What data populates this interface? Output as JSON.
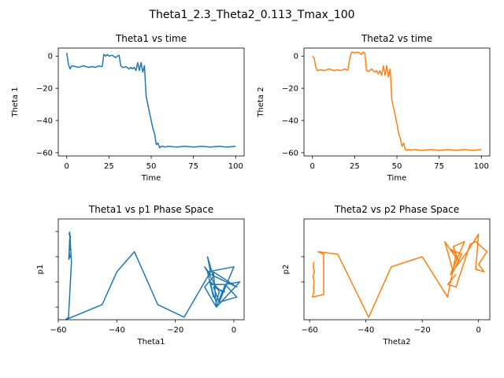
{
  "figure": {
    "suptitle": "Theta1_2.3_Theta2_0.113_Tmax_100"
  },
  "chart_data": [
    {
      "type": "line",
      "title": "Theta1 vs time",
      "xlabel": "Time",
      "ylabel": "Theta 1",
      "xlim": [
        -5,
        105
      ],
      "ylim": [
        -62,
        5
      ],
      "xticks": [
        0,
        25,
        50,
        75,
        100
      ],
      "xtick_labels": [
        "0",
        "25",
        "50",
        "75",
        "100"
      ],
      "yticks": [
        0,
        -20,
        -40,
        -60
      ],
      "ytick_labels": [
        "0",
        "−20",
        "−40",
        "−60"
      ],
      "color": "#1f77b4",
      "series": [
        {
          "x": [
            0,
            1,
            2,
            3,
            5,
            7,
            10,
            13,
            15,
            17,
            19,
            20,
            21,
            22,
            23,
            24,
            25,
            27,
            29,
            30,
            31,
            32,
            33,
            34,
            35,
            37,
            38,
            39,
            40,
            41,
            42,
            43,
            44,
            45,
            46,
            47,
            48,
            49,
            50,
            51,
            52,
            53,
            54,
            55,
            56,
            57,
            58,
            60,
            65,
            70,
            75,
            80,
            85,
            90,
            95,
            100
          ],
          "y": [
            2,
            -5,
            -8,
            -6,
            -6.5,
            -7,
            -6,
            -7,
            -6.5,
            -7,
            -6,
            -6.5,
            -6.5,
            1,
            0,
            1,
            0,
            0.5,
            -1,
            0,
            0.5,
            -6,
            -7,
            -7,
            -6.5,
            -8,
            -7,
            -8,
            -7,
            -9,
            -4,
            -9,
            -4,
            -10,
            -6,
            -25,
            -30,
            -35,
            -40,
            -45,
            -48,
            -55,
            -54,
            -57,
            -56,
            -56,
            -56.5,
            -56,
            -56.5,
            -56,
            -56.5,
            -56,
            -56.5,
            -56,
            -56.5,
            -56
          ]
        }
      ]
    },
    {
      "type": "line",
      "title": "Theta2 vs time",
      "xlabel": "Time",
      "ylabel": "Theta 2",
      "xlim": [
        -5,
        105
      ],
      "ylim": [
        -62,
        5
      ],
      "xticks": [
        0,
        25,
        50,
        75,
        100
      ],
      "xtick_labels": [
        "0",
        "25",
        "50",
        "75",
        "100"
      ],
      "yticks": [
        0,
        -20,
        -40,
        -60
      ],
      "ytick_labels": [
        "0",
        "−20",
        "−40",
        "−60"
      ],
      "color": "#ff7f0e",
      "series": [
        {
          "x": [
            0,
            1,
            2,
            3,
            5,
            7,
            10,
            13,
            15,
            17,
            19,
            20,
            21,
            22,
            23,
            24,
            25,
            27,
            29,
            30,
            31,
            32,
            33,
            34,
            35,
            37,
            38,
            39,
            40,
            41,
            42,
            43,
            44,
            45,
            46,
            47,
            48,
            49,
            50,
            51,
            52,
            53,
            54,
            55,
            56,
            57,
            58,
            60,
            65,
            70,
            75,
            80,
            85,
            90,
            95,
            100
          ],
          "y": [
            0,
            -1,
            -7,
            -9,
            -8.5,
            -9,
            -8,
            -9,
            -8.5,
            -9,
            -8,
            -8.5,
            -8.5,
            -2,
            2,
            2.5,
            2,
            2.5,
            1,
            2.5,
            2,
            -9,
            -9.5,
            -9,
            -8,
            -10,
            -9,
            -11,
            -9,
            -12,
            -6,
            -12,
            -6,
            -13,
            -8,
            -27,
            -32,
            -37,
            -42,
            -48,
            -51,
            -56,
            -54,
            -58,
            -58.5,
            -58,
            -58.5,
            -58,
            -58.5,
            -58,
            -58.5,
            -58,
            -58.5,
            -58,
            -58.5,
            -58
          ]
        }
      ]
    },
    {
      "type": "line",
      "title": "Theta1 vs p1 Phase Space",
      "xlabel": "Theta1",
      "ylabel": "p1",
      "xlim": [
        -60,
        3.5
      ],
      "ylim": [
        -1.25,
        0.75
      ],
      "xticks": [
        -60,
        -40,
        -20,
        0
      ],
      "xtick_labels": [
        "−60",
        "−40",
        "−20",
        "0"
      ],
      "yticks": [
        -1,
        -0.5,
        0,
        0.5
      ],
      "ytick_labels": [
        "",
        "",
        "",
        ""
      ],
      "color": "#1f77b4",
      "series": [
        {
          "x": [
            -56,
            -56.3,
            -55.8,
            -56.2,
            -55.9,
            -56.3,
            -56,
            -56.4,
            -56,
            -55.8,
            -55.5,
            -56.5,
            -57.5,
            -45,
            -40,
            -34,
            -26,
            -17,
            -8,
            -9,
            -7,
            -10,
            -6,
            -4,
            -8,
            -7,
            -9,
            0,
            -5,
            -3,
            2,
            -6,
            -7,
            1,
            -8,
            -10,
            -5,
            -6,
            -7,
            -8,
            -3,
            1,
            -5,
            -7,
            -3
          ],
          "x_note": "",
          "y": [
            0.5,
            0.45,
            0.4,
            0.3,
            0.2,
            0.1,
            0.0,
            -0.05,
            0.45,
            0.2,
            -0.1,
            -1.2,
            -1.25,
            -0.95,
            -0.3,
            0.1,
            -0.95,
            -1.2,
            -0.3,
            0.0,
            -0.4,
            -0.6,
            -1.0,
            -0.7,
            -0.5,
            -0.8,
            -0.3,
            -0.2,
            -0.9,
            -0.55,
            -0.5,
            -1.0,
            -0.3,
            -0.6,
            -0.35,
            -0.2,
            -0.7,
            -0.9,
            -0.75,
            -0.55,
            -0.55,
            -0.8,
            -0.9,
            -0.6,
            -0.7
          ]
        }
      ]
    },
    {
      "type": "line",
      "title": "Theta2 vs p2 Phase Space",
      "xlabel": "Theta2",
      "ylabel": "p2",
      "xlim": [
        -62,
        4
      ],
      "ylim": [
        -1.25,
        0.75
      ],
      "xticks": [
        -60,
        -40,
        -20,
        0
      ],
      "xtick_labels": [
        "−60",
        "−40",
        "−20",
        "0"
      ],
      "yticks": [
        -0.5,
        0
      ],
      "ytick_labels": [
        "",
        ""
      ],
      "color": "#ff7f0e",
      "series": [
        {
          "x": [
            -58.5,
            -58.7,
            -58.3,
            -58.8,
            -58.4,
            -58.6,
            -58.5,
            -59,
            -55,
            -55,
            -57,
            -50,
            -39,
            -31,
            -20,
            -11,
            -8,
            -10,
            -6,
            -9,
            -12,
            -7,
            -9,
            -5,
            -10,
            -4,
            0,
            -1,
            2,
            0,
            3,
            -1,
            -3,
            -8,
            -11,
            -8
          ],
          "y": [
            -0.1,
            -0.2,
            -0.3,
            -0.4,
            -0.5,
            -0.6,
            -0.7,
            -0.8,
            -0.75,
            0.05,
            0.1,
            0.05,
            -1.2,
            -0.2,
            0.0,
            -0.8,
            0.05,
            0.15,
            0.05,
            -0.3,
            0.3,
            -0.1,
            0.2,
            0.3,
            -0.35,
            0.1,
            0.45,
            -0.25,
            -0.3,
            -0.15,
            0.1,
            0.3,
            0.25,
            -0.6,
            -0.55,
            -0.35
          ]
        }
      ]
    }
  ]
}
